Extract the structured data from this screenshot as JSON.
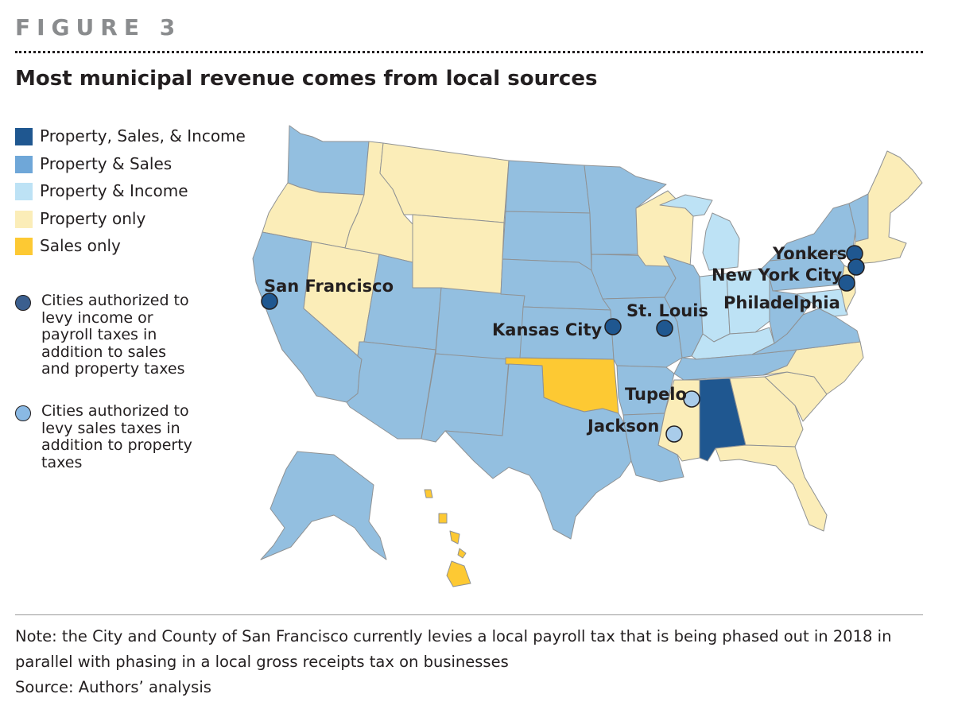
{
  "figure_label": "FIGURE 3",
  "title": "Most municipal revenue comes from local sources",
  "colors": {
    "property_sales_income": "#1f5790",
    "property_sales": "#93bfe0",
    "property_income": "#bde2f5",
    "property_only": "#fbedb8",
    "sales_only": "#fdc933",
    "city_dark": "#1f5790",
    "city_light": "#a9ccea"
  },
  "legend": {
    "items": [
      {
        "label": "Property, Sales, & Income",
        "color": "#1f5790"
      },
      {
        "label": "Property & Sales",
        "color": "#6fa7d8"
      },
      {
        "label": "Property & Income",
        "color": "#bde2f5"
      },
      {
        "label": "Property only",
        "color": "#fbedb8"
      },
      {
        "label": "Sales only",
        "color": "#fdc933"
      }
    ],
    "city_types": [
      {
        "label_lines": [
          "Cities authorized to",
          "levy income or",
          "payroll taxes in",
          "addition to sales",
          "and property taxes"
        ],
        "color": "#3b5f8f"
      },
      {
        "label_lines": [
          "Cities authorized to",
          "levy sales taxes in",
          "addition to property",
          "taxes"
        ],
        "color": "#8ab9e4"
      }
    ]
  },
  "map": {
    "state_categories": {
      "Alabama": "property_sales_income",
      "Oklahoma": "sales_only",
      "Hawaii": "sales_only",
      "Michigan": "property_income",
      "Ohio": "property_income",
      "Indiana": "property_income",
      "Kentucky": "property_income",
      "Maryland": "property_income",
      "Oregon": "property_only",
      "Idaho": "property_only",
      "Montana": "property_only",
      "Wyoming": "property_only",
      "Nevada": "property_only",
      "Wisconsin": "property_only",
      "Mississippi": "property_only",
      "Georgia": "property_only",
      "Florida": "property_only",
      "North Carolina": "property_only",
      "South Carolina": "property_only",
      "New Jersey": "property_only",
      "New England": "property_only",
      "Washington": "property_sales",
      "California": "property_sales",
      "Utah": "property_sales",
      "Arizona": "property_sales",
      "Colorado": "property_sales",
      "New Mexico": "property_sales",
      "North Dakota": "property_sales",
      "South Dakota": "property_sales",
      "Nebraska": "property_sales",
      "Kansas": "property_sales",
      "Texas": "property_sales",
      "Minnesota": "property_sales",
      "Iowa": "property_sales",
      "Missouri": "property_sales",
      "Arkansas": "property_sales",
      "Louisiana": "property_sales",
      "Illinois": "property_sales",
      "Tennessee": "property_sales",
      "Virginia": "property_sales",
      "West Virginia": "property_sales",
      "Pennsylvania": "property_sales",
      "New York": "property_sales",
      "Vermont": "property_sales",
      "Alaska": "property_sales"
    },
    "cities": [
      {
        "name": "San Francisco",
        "type": "income"
      },
      {
        "name": "Kansas City",
        "type": "income"
      },
      {
        "name": "St. Louis",
        "type": "income"
      },
      {
        "name": "Yonkers",
        "type": "income"
      },
      {
        "name": "New York City",
        "type": "income"
      },
      {
        "name": "Philadelphia",
        "type": "income"
      },
      {
        "name": "Tupelo",
        "type": "sales"
      },
      {
        "name": "Jackson",
        "type": "sales"
      }
    ]
  },
  "note_lines": [
    "Note: the City and County of San Francisco currently levies a local payroll tax that is being phased out in 2018 in",
    "parallel with phasing in a local gross receipts tax on businesses"
  ],
  "source": "Source: Authors’ analysis"
}
